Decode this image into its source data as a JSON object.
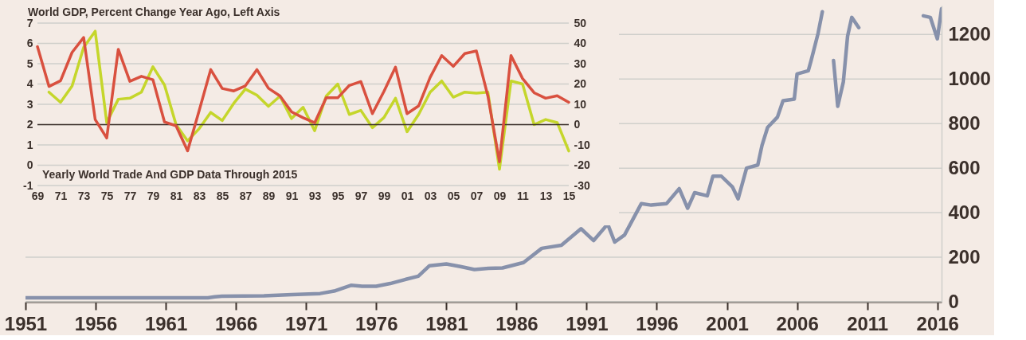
{
  "chart_data": [
    {
      "type": "line",
      "x": [
        1951,
        1955,
        1960,
        1964,
        1964.5,
        1965,
        1968,
        1970,
        1972,
        1973,
        1974.2,
        1975,
        1976,
        1977,
        1978,
        1979,
        1979.8,
        1981,
        1982,
        1983,
        1984,
        1985,
        1986.5,
        1987.8,
        1989.2,
        1990.6,
        1991.5,
        1992.5,
        1993,
        1993.7,
        1994.9,
        1995.6,
        1996.7,
        1997.6,
        1998.2,
        1998.7,
        1999.6,
        2000,
        2000.6,
        2001.4,
        2001.8,
        2002.4,
        2003.2,
        2003.5,
        2003.9,
        2004.6,
        2005,
        2005.8,
        2006,
        2006.8,
        2007,
        2007.5,
        2007.8,
        2007.9,
        2008.2,
        2008.45,
        2008.6,
        2008.9,
        2009.3,
        2009.6,
        2009.9,
        2010.4,
        2010.5,
        2012,
        2014.9,
        2015,
        2015.5,
        2016,
        2016.3
      ],
      "values": [
        18,
        18,
        18,
        18,
        22,
        25,
        27,
        32,
        37,
        48,
        74,
        70,
        70,
        82,
        99,
        115,
        162,
        170,
        158,
        145,
        150,
        152,
        176,
        240,
        254,
        328,
        275,
        349,
        268,
        300,
        441,
        434,
        441,
        508,
        420,
        490,
        476,
        564,
        564,
        515,
        462,
        600,
        614,
        702,
        783,
        829,
        903,
        910,
        1023,
        1037,
        1083,
        1206,
        1302,
        null,
        null,
        null,
        1083,
        878,
        988,
        1192,
        1277,
        1231,
        null,
        null,
        null,
        1284,
        1277,
        1181,
        1316
      ],
      "color": "#8791ab",
      "line_style": "solid",
      "xlim": [
        1951,
        2016.3
      ],
      "xticks": [
        1951,
        1956,
        1961,
        1966,
        1971,
        1976,
        1981,
        1986,
        1991,
        1996,
        2001,
        2006,
        2011,
        2016
      ],
      "ylim": [
        0,
        1330
      ],
      "yticks": [
        0,
        200,
        400,
        600,
        800,
        1000,
        1200
      ],
      "grid": "y"
    },
    {
      "type": "line",
      "title": "World GDP, Percent Change Year Ago, Left Axis",
      "annotations": [
        "Yearly World Trade And GDP Data Through 2015"
      ],
      "series": [
        {
          "color": "#c5d62b",
          "axis": "y",
          "x": [
            1970,
            1971,
            1972,
            1973,
            1974,
            1975,
            1976,
            1977,
            1978,
            1979,
            1980,
            1981,
            1982,
            1983,
            1984,
            1985,
            1986,
            1987,
            1988,
            1989,
            1990,
            1991,
            1992,
            1993,
            1994,
            1995,
            1996,
            1997,
            1998,
            1999,
            2000,
            2001,
            2002,
            2003,
            2004,
            2005,
            2006,
            2007,
            2008,
            2009,
            2010,
            2011,
            2012,
            2013,
            2014,
            2015
          ],
          "values": [
            3.6,
            3.1,
            3.9,
            5.8,
            6.6,
            2.1,
            3.25,
            3.3,
            3.6,
            4.85,
            3.95,
            2.0,
            1.2,
            1.8,
            2.6,
            2.2,
            3.05,
            3.75,
            3.45,
            2.9,
            3.4,
            2.3,
            2.85,
            1.7,
            3.4,
            4.0,
            2.5,
            2.7,
            1.85,
            2.35,
            3.3,
            1.65,
            2.5,
            3.6,
            4.15,
            3.35,
            3.6,
            3.55,
            3.6,
            -0.2,
            4.15,
            4.0,
            2.0,
            2.25,
            2.1,
            0.7
          ]
        },
        {
          "color": "#d9503f",
          "axis": "y2",
          "x": [
            1969,
            1970,
            1971,
            1972,
            1973,
            1974,
            1975,
            1976,
            1977,
            1978,
            1979,
            1980,
            1981,
            1982,
            1983,
            1984,
            1985,
            1986,
            1987,
            1988,
            1989,
            1990,
            1991,
            1992,
            1993,
            1994,
            1995,
            1996,
            1997,
            1998,
            1999,
            2000,
            2001,
            2002,
            2003,
            2004,
            2005,
            2006,
            2007,
            2008,
            2009,
            2010,
            2011,
            2012,
            2013,
            2014,
            2015
          ],
          "values": [
            38.4,
            18.8,
            21.6,
            35.6,
            42.9,
            2.5,
            -6.6,
            37.1,
            21.3,
            23.8,
            22.1,
            1.3,
            -0.6,
            -12.9,
            6.9,
            27.1,
            17.8,
            16.6,
            19.1,
            27.1,
            17.9,
            14.1,
            6.3,
            3.4,
            0.9,
            13.2,
            13.2,
            19.3,
            21.2,
            5.4,
            16.4,
            28.3,
            5.4,
            9.2,
            23.3,
            34.0,
            28.7,
            35.0,
            36.3,
            14,
            -18.3,
            34.0,
            22.7,
            15.7,
            13.0,
            14.2,
            11.0
          ]
        }
      ],
      "xlim": [
        1969,
        2015
      ],
      "xticks": [
        {
          "value": 1969,
          "label": "69"
        },
        {
          "value": 1971,
          "label": "71"
        },
        {
          "value": 1973,
          "label": "73"
        },
        {
          "value": 1975,
          "label": "75"
        },
        {
          "value": 1977,
          "label": "77"
        },
        {
          "value": 1979,
          "label": "79"
        },
        {
          "value": 1981,
          "label": "81"
        },
        {
          "value": 1983,
          "label": "83"
        },
        {
          "value": 1985,
          "label": "85"
        },
        {
          "value": 1987,
          "label": "87"
        },
        {
          "value": 1989,
          "label": "89"
        },
        {
          "value": 1991,
          "label": "91"
        },
        {
          "value": 1993,
          "label": "93"
        },
        {
          "value": 1995,
          "label": "95"
        },
        {
          "value": 1997,
          "label": "97"
        },
        {
          "value": 1999,
          "label": "99"
        },
        {
          "value": 2001,
          "label": "01"
        },
        {
          "value": 2003,
          "label": "03"
        },
        {
          "value": 2005,
          "label": "05"
        },
        {
          "value": 2007,
          "label": "07"
        },
        {
          "value": 2009,
          "label": "09"
        },
        {
          "value": 2011,
          "label": "11"
        },
        {
          "value": 2013,
          "label": "13"
        },
        {
          "value": 2015,
          "label": "15"
        }
      ],
      "ylim": [
        -1,
        7
      ],
      "yticks": [
        -1,
        0,
        1,
        2,
        3,
        4,
        5,
        6,
        7
      ],
      "y2lim": [
        -30,
        50
      ],
      "y2ticks": [
        -30,
        -20,
        -10,
        0,
        10,
        20,
        30,
        40,
        50
      ],
      "grid": "y",
      "ref_lines": [
        {
          "axis": "y2",
          "value": 0,
          "color": "#3b302b"
        }
      ]
    }
  ]
}
